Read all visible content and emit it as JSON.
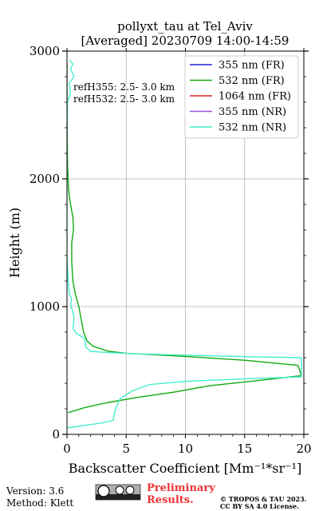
{
  "chart_data": {
    "type": "line",
    "title_line1": "pollyxt_tau at Tel_Aviv",
    "title_line2": "[Averaged] 20230709 14:00-14:59",
    "xlabel": "Backscatter Coefficient [Mm⁻¹*sr⁻¹]",
    "ylabel": "Height (m)",
    "xlim": [
      0,
      20
    ],
    "ylim": [
      0,
      3000
    ],
    "x_ticks": [
      0,
      5,
      10,
      15,
      20
    ],
    "y_ticks": [
      0,
      1000,
      2000,
      3000
    ],
    "grid": true,
    "legend_position": "top-right",
    "annotations": [
      "refH355:  2.5- 3.0 km",
      "refH532:  2.5- 3.0 km"
    ],
    "series": [
      {
        "name": "355 nm (FR)",
        "color": "#2222dd",
        "points": []
      },
      {
        "name": "532 nm (FR)",
        "color": "#11aa11",
        "points": [
          [
            0.1,
            170
          ],
          [
            1.5,
            210
          ],
          [
            3.5,
            250
          ],
          [
            6,
            290
          ],
          [
            9,
            330
          ],
          [
            12,
            380
          ],
          [
            16,
            420
          ],
          [
            19.8,
            460
          ],
          [
            19.5,
            540
          ],
          [
            15,
            580
          ],
          [
            10,
            610
          ],
          [
            5,
            635
          ],
          [
            3.5,
            650
          ],
          [
            2.2,
            690
          ],
          [
            1.7,
            730
          ],
          [
            1.4,
            800
          ],
          [
            1.2,
            900
          ],
          [
            1.0,
            1000
          ],
          [
            0.7,
            1100
          ],
          [
            0.5,
            1200
          ],
          [
            0.4,
            1350
          ],
          [
            0.4,
            1500
          ],
          [
            0.55,
            1600
          ],
          [
            0.5,
            1700
          ],
          [
            0.3,
            1800
          ],
          [
            0.15,
            1900
          ],
          [
            0.05,
            2100
          ],
          [
            0.02,
            2300
          ],
          [
            0.0,
            2600
          ],
          [
            0.0,
            2900
          ]
        ]
      },
      {
        "name": "1064 nm (FR)",
        "color": "#dd2222",
        "points": []
      },
      {
        "name": "355 nm (NR)",
        "color": "#9955dd",
        "points": []
      },
      {
        "name": "532 nm (NR)",
        "color": "#44eecc",
        "points": [
          [
            0.0,
            50
          ],
          [
            1.5,
            70
          ],
          [
            3.0,
            90
          ],
          [
            3.9,
            110
          ],
          [
            3.95,
            140
          ],
          [
            4.1,
            200
          ],
          [
            4.5,
            280
          ],
          [
            5.5,
            340
          ],
          [
            7,
            390
          ],
          [
            10,
            415
          ],
          [
            15,
            435
          ],
          [
            19.8,
            450
          ],
          [
            19.8,
            600
          ],
          [
            15,
            608
          ],
          [
            10,
            620
          ],
          [
            6,
            630
          ],
          [
            3.5,
            640
          ],
          [
            2.0,
            650
          ],
          [
            1.6,
            680
          ],
          [
            1.5,
            750
          ],
          [
            0.8,
            790
          ],
          [
            0.5,
            830
          ],
          [
            0.6,
            900
          ],
          [
            0.5,
            960
          ],
          [
            0.3,
            1010
          ],
          [
            0.4,
            1060
          ],
          [
            0.2,
            1100
          ],
          [
            0.1,
            1200
          ],
          [
            0.0,
            1400
          ],
          [
            0.0,
            1700
          ],
          [
            0.0,
            2000
          ],
          [
            0.0,
            2400
          ],
          [
            0.05,
            2600
          ],
          [
            0.3,
            2680
          ],
          [
            0.2,
            2750
          ],
          [
            0.6,
            2800
          ],
          [
            0.3,
            2860
          ],
          [
            0.5,
            2900
          ],
          [
            0.2,
            2930
          ]
        ]
      }
    ]
  },
  "footer": {
    "version": "Version: 3.6",
    "method": "Method: Klett",
    "license_badge": "cc-by-sa-badge",
    "preliminary_line1": "Preliminary",
    "preliminary_line2": "Results.",
    "copyright_line1": "© TROPOS & TAU 2023.",
    "copyright_line2": "CC BY SA 4.0 License."
  }
}
